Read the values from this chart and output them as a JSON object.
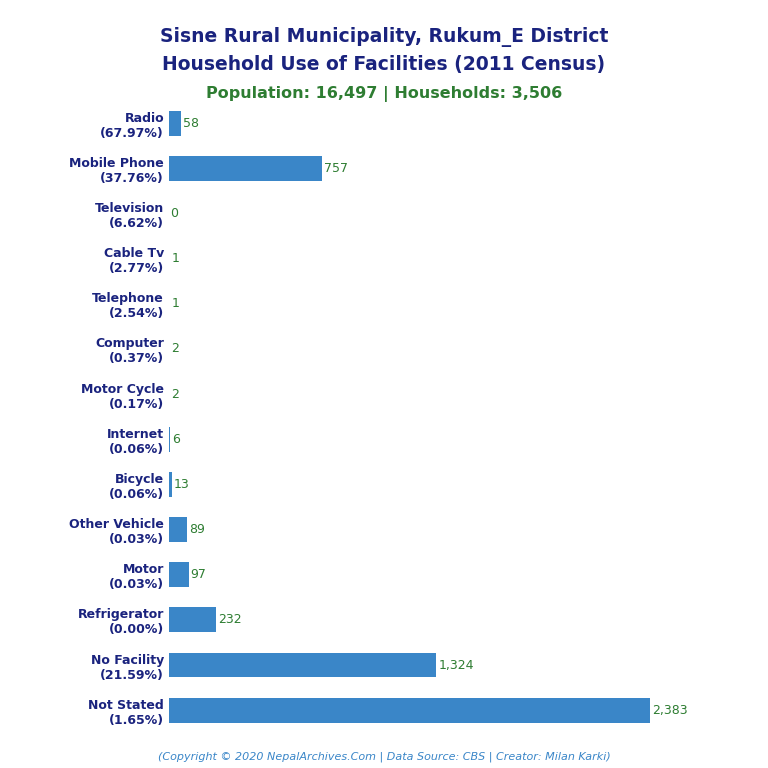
{
  "title_line1": "Sisne Rural Municipality, Rukum_E District",
  "title_line2": "Household Use of Facilities (2011 Census)",
  "subtitle": "Population: 16,497 | Households: 3,506",
  "footer": "(Copyright © 2020 NepalArchives.Com | Data Source: CBS | Creator: Milan Karki)",
  "categories": [
    "Radio\n(67.97%)",
    "Mobile Phone\n(37.76%)",
    "Television\n(6.62%)",
    "Cable Tv\n(2.77%)",
    "Telephone\n(2.54%)",
    "Computer\n(0.37%)",
    "Motor Cycle\n(0.17%)",
    "Internet\n(0.06%)",
    "Bicycle\n(0.06%)",
    "Other Vehicle\n(0.03%)",
    "Motor\n(0.03%)",
    "Refrigerator\n(0.00%)",
    "No Facility\n(21.59%)",
    "Not Stated\n(1.65%)"
  ],
  "values": [
    2383,
    1324,
    232,
    97,
    89,
    13,
    6,
    2,
    2,
    1,
    1,
    0,
    757,
    58
  ],
  "value_labels": [
    "2,383",
    "1,324",
    "232",
    "97",
    "89",
    "13",
    "6",
    "2",
    "2",
    "1",
    "1",
    "0",
    "757",
    "58"
  ],
  "bar_color": "#3a86c8",
  "title_color": "#1a237e",
  "subtitle_color": "#2e7d32",
  "value_color": "#2e7d32",
  "footer_color": "#3a86c8",
  "background_color": "#ffffff",
  "xlim": [
    0,
    2700
  ]
}
